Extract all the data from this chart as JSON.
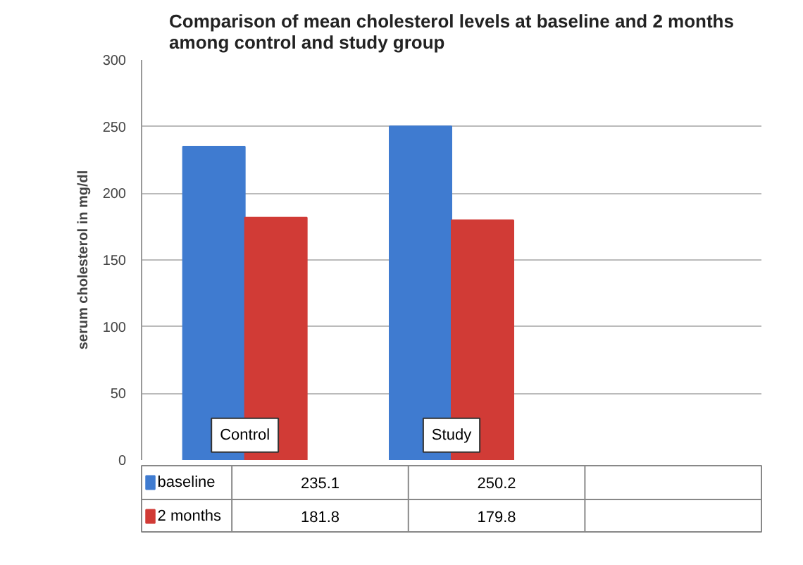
{
  "chart_data": {
    "type": "bar",
    "title": "Comparison of mean cholesterol levels at baseline and 2 months among control and study group",
    "ylabel": "serum cholesterol in mg/dl",
    "categories": [
      "Control",
      "Study",
      null
    ],
    "series": [
      {
        "name": "baseline",
        "color": "#3f7bd0",
        "values": [
          235.1,
          250.2,
          null
        ]
      },
      {
        "name": "2 months",
        "color": "#d13b36",
        "values": [
          181.8,
          179.8,
          null
        ]
      }
    ],
    "ylim": [
      0,
      300
    ],
    "yticks": [
      0,
      50,
      100,
      150,
      200,
      250,
      300
    ],
    "grid": "y",
    "legend": "bottom",
    "data_labels": true
  }
}
